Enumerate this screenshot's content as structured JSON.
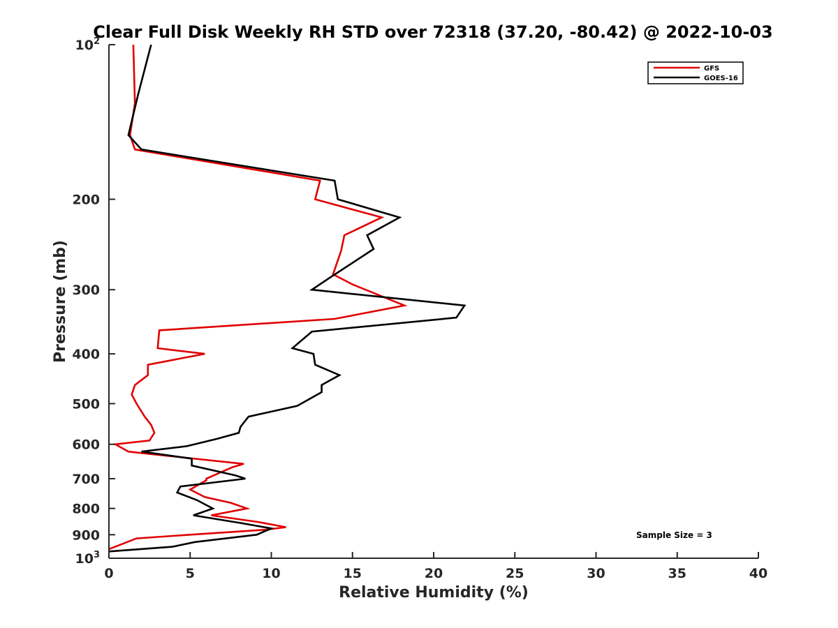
{
  "chart_data": {
    "type": "line",
    "title": "Clear Full Disk Weekly RH STD over 72318 (37.20, -80.42) @ 2022-10-03",
    "xlabel": "Relative Humidity (%)",
    "ylabel": "Pressure (mb)",
    "xlim": [
      0,
      40
    ],
    "ylim": [
      100,
      1000
    ],
    "y_scale": "log",
    "y_reversed": true,
    "x_ticks": [
      0,
      5,
      10,
      15,
      20,
      25,
      30,
      35,
      40
    ],
    "y_ticks": [
      {
        "value": 100,
        "base": "10",
        "exp": "2"
      },
      {
        "value": 200,
        "label": "200"
      },
      {
        "value": 300,
        "label": "300"
      },
      {
        "value": 400,
        "label": "400"
      },
      {
        "value": 500,
        "label": "500"
      },
      {
        "value": 600,
        "label": "600"
      },
      {
        "value": 700,
        "label": "700"
      },
      {
        "value": 800,
        "label": "800"
      },
      {
        "value": 900,
        "label": "900"
      },
      {
        "value": 1000,
        "base": "10",
        "exp": "3"
      }
    ],
    "grid": false,
    "legend_position": "top-right",
    "series": [
      {
        "name": "GFS",
        "color": "#e00000",
        "points": [
          [
            1.5,
            100
          ],
          [
            1.6,
            130
          ],
          [
            1.3,
            150
          ],
          [
            1.6,
            160
          ],
          [
            13.0,
            184
          ],
          [
            12.7,
            200
          ],
          [
            16.8,
            217
          ],
          [
            14.5,
            235
          ],
          [
            14.3,
            252
          ],
          [
            13.8,
            280
          ],
          [
            15.0,
            293
          ],
          [
            18.2,
            322
          ],
          [
            13.9,
            342
          ],
          [
            3.1,
            360
          ],
          [
            3.0,
            390
          ],
          [
            5.9,
            400
          ],
          [
            2.4,
            420
          ],
          [
            2.4,
            440
          ],
          [
            1.6,
            460
          ],
          [
            1.4,
            480
          ],
          [
            1.7,
            500
          ],
          [
            2.2,
            530
          ],
          [
            2.6,
            550
          ],
          [
            2.8,
            570
          ],
          [
            2.5,
            590
          ],
          [
            0.4,
            600
          ],
          [
            1.2,
            620
          ],
          [
            2.2,
            625
          ],
          [
            8.3,
            655
          ],
          [
            7.6,
            665
          ],
          [
            6.0,
            700
          ],
          [
            6.0,
            705
          ],
          [
            5.0,
            735
          ],
          [
            5.9,
            760
          ],
          [
            7.5,
            780
          ],
          [
            8.5,
            800
          ],
          [
            6.3,
            825
          ],
          [
            9.2,
            850
          ],
          [
            10.9,
            870
          ],
          [
            9.7,
            880
          ],
          [
            5.0,
            900
          ],
          [
            1.7,
            915
          ],
          [
            0.0,
            960
          ]
        ]
      },
      {
        "name": "GOES-16",
        "color": "#000000",
        "points": [
          [
            2.6,
            100
          ],
          [
            1.8,
            125
          ],
          [
            1.2,
            150
          ],
          [
            2.0,
            160
          ],
          [
            13.9,
            184
          ],
          [
            14.1,
            200
          ],
          [
            17.9,
            217
          ],
          [
            15.9,
            235
          ],
          [
            16.3,
            250
          ],
          [
            13.7,
            283
          ],
          [
            12.5,
            300
          ],
          [
            21.9,
            322
          ],
          [
            21.4,
            340
          ],
          [
            12.5,
            362
          ],
          [
            11.3,
            390
          ],
          [
            12.6,
            400
          ],
          [
            12.7,
            420
          ],
          [
            14.2,
            440
          ],
          [
            13.1,
            460
          ],
          [
            13.1,
            475
          ],
          [
            11.6,
            505
          ],
          [
            8.6,
            530
          ],
          [
            8.1,
            555
          ],
          [
            8.0,
            570
          ],
          [
            6.7,
            585
          ],
          [
            4.8,
            605
          ],
          [
            2.0,
            620
          ],
          [
            5.1,
            640
          ],
          [
            5.1,
            660
          ],
          [
            7.8,
            690
          ],
          [
            8.4,
            700
          ],
          [
            4.4,
            725
          ],
          [
            4.2,
            745
          ],
          [
            5.4,
            770
          ],
          [
            6.4,
            800
          ],
          [
            5.2,
            825
          ],
          [
            8.2,
            855
          ],
          [
            10.0,
            875
          ],
          [
            9.1,
            900
          ],
          [
            5.3,
            930
          ],
          [
            3.9,
            950
          ],
          [
            0.0,
            970
          ]
        ]
      }
    ],
    "annotations": [
      "Sample Size = 3"
    ]
  }
}
